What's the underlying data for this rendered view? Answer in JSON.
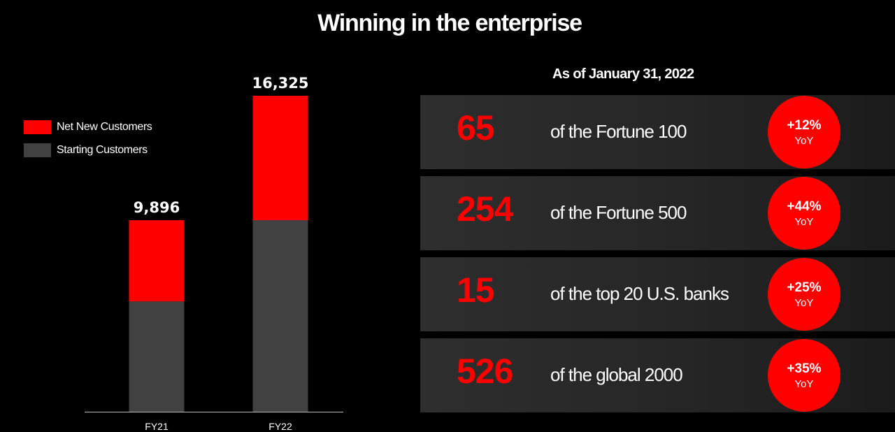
{
  "title": "Winning in the enterprise",
  "as_of": "As of January 31, 2022",
  "chart_data": {
    "type": "bar",
    "stacked": true,
    "categories": [
      "FY21",
      "FY22"
    ],
    "series": [
      {
        "name": "Starting Customers",
        "color": "#414141",
        "values": [
          5700,
          9896
        ]
      },
      {
        "name": "Net New Customers",
        "color": "#ff0000",
        "values": [
          4196,
          6429
        ]
      }
    ],
    "totals": [
      "9,896",
      "16,325"
    ],
    "legend_position": "top-left",
    "ylim": [
      0,
      16325
    ],
    "grid": false
  },
  "stats": [
    {
      "number": "65",
      "description": "of the Fortune 100",
      "change": "+12%",
      "period": "YoY"
    },
    {
      "number": "254",
      "description": "of the Fortune 500",
      "change": "+44%",
      "period": "YoY"
    },
    {
      "number": "15",
      "description": "of the top 20 U.S. banks",
      "change": "+25%",
      "period": "YoY"
    },
    {
      "number": "526",
      "description": "of the global 2000",
      "change": "+35%",
      "period": "YoY"
    }
  ]
}
